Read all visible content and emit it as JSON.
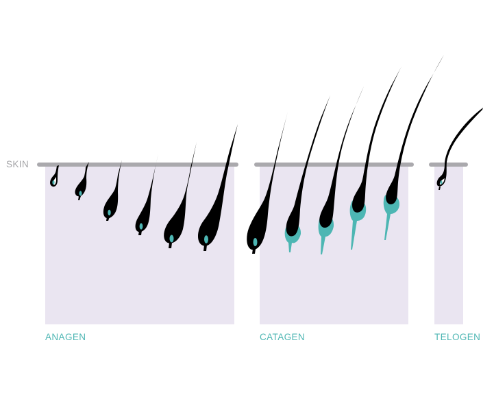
{
  "colors": {
    "panel": "#EAE5F1",
    "skin_line": "#AAA9AD",
    "skin_label": "#A5A5A8",
    "phase_label": "#4DB6B3",
    "hair": "#000000",
    "papilla": "#4DB6B3",
    "background": "#FFFFFF"
  },
  "skin_label": "SKIN",
  "phases": [
    {
      "label": "ANAGEN"
    },
    {
      "label": "CATAGEN"
    },
    {
      "label": "TELOGEN"
    }
  ]
}
